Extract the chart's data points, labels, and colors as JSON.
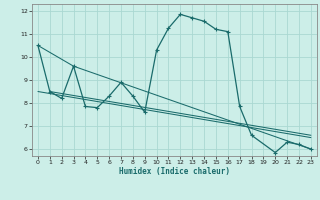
{
  "xlabel": "Humidex (Indice chaleur)",
  "bg_color": "#cceee8",
  "grid_color": "#aad8d2",
  "line_color": "#1a6b6b",
  "spine_color": "#888888",
  "xlim": [
    -0.5,
    23.5
  ],
  "ylim": [
    5.7,
    12.3
  ],
  "yticks": [
    6,
    7,
    8,
    9,
    10,
    11,
    12
  ],
  "xticks": [
    0,
    1,
    2,
    3,
    4,
    5,
    6,
    7,
    8,
    9,
    10,
    11,
    12,
    13,
    14,
    15,
    16,
    17,
    18,
    19,
    20,
    21,
    22,
    23
  ],
  "main_curve": {
    "x": [
      0,
      1,
      2,
      3,
      4,
      5,
      6,
      7,
      8,
      9,
      10,
      11,
      12,
      13,
      14,
      15,
      16,
      17,
      18,
      20,
      21,
      22,
      23
    ],
    "y": [
      10.5,
      8.5,
      8.2,
      9.6,
      7.85,
      7.8,
      8.3,
      8.9,
      8.3,
      7.6,
      10.3,
      11.25,
      11.85,
      11.7,
      11.55,
      11.2,
      11.1,
      7.85,
      6.6,
      5.85,
      6.3,
      6.2,
      6.0
    ]
  },
  "trend_lines": [
    {
      "x": [
        0,
        3,
        23
      ],
      "y": [
        10.5,
        9.6,
        6.0
      ]
    },
    {
      "x": [
        0,
        23
      ],
      "y": [
        8.5,
        6.5
      ]
    },
    {
      "x": [
        1,
        23
      ],
      "y": [
        8.5,
        6.6
      ]
    }
  ]
}
